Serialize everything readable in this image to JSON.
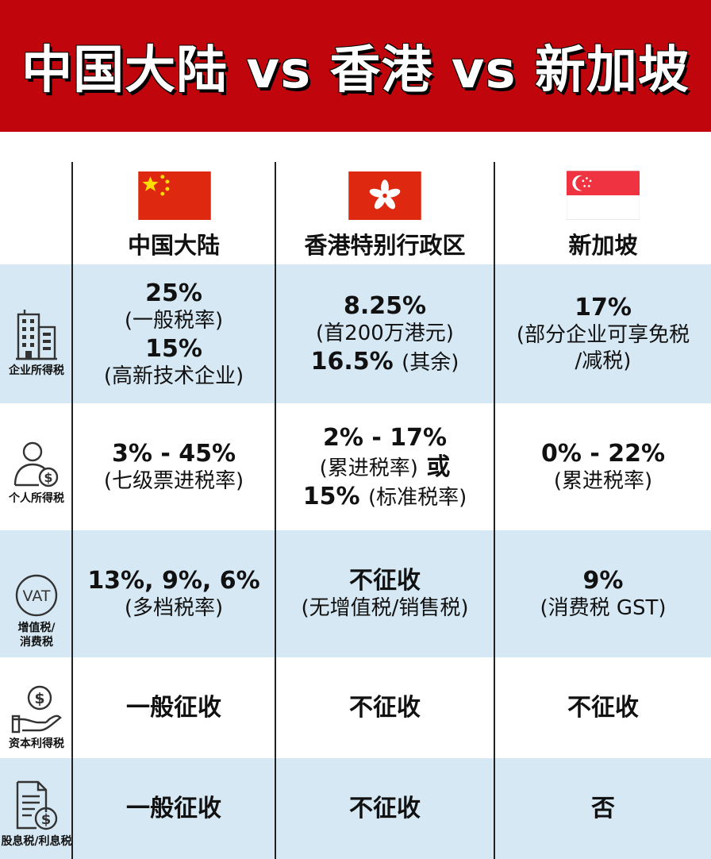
{
  "title": "中国大陆 vs 香港 vs 新加坡",
  "colors": {
    "banner": "#c0060c",
    "band": "#d6e8f3",
    "cn_red": "#de2910",
    "cn_star": "#ffde00",
    "sg_red": "#ef3340"
  },
  "columns": [
    {
      "name": "中国大陆",
      "flag": "china-flag-icon"
    },
    {
      "name": "香港特别行政区",
      "flag": "hong-kong-flag-icon"
    },
    {
      "name": "新加坡",
      "flag": "singapore-flag-icon"
    }
  ],
  "rows": [
    {
      "label": "企业所得税",
      "icon": "office-building-icon",
      "cells": [
        [
          "25%",
          "(一般税率)",
          "15%",
          "(高新技术企业)"
        ],
        [
          "8.25%",
          "(首200万港元)",
          "16.5%",
          "(其余)"
        ],
        [
          "17%",
          "(部分企业可享免税",
          "/减税)"
        ]
      ]
    },
    {
      "label": "个人所得税",
      "icon": "person-coin-icon",
      "cells": [
        [
          "3% - 45%",
          "(七级票进税率)"
        ],
        [
          "2% - 17%",
          "(累进税率)",
          "或",
          "15%",
          "(标准税率)"
        ],
        [
          "0% - 22%",
          "(累进税率)"
        ]
      ]
    },
    {
      "label": "增值税/消费税",
      "label_line1": "增值税/",
      "label_line2": "消费税",
      "icon": "vat-circle-icon",
      "icon_text": "VAT",
      "cells": [
        [
          "13%, 9%, 6%",
          "(多档税率)"
        ],
        [
          "不征收",
          "(无增值税/销售税)"
        ],
        [
          "9%",
          "(消费税 GST)"
        ]
      ]
    },
    {
      "label": "资本利得税",
      "icon": "hand-coin-icon",
      "cells": [
        [
          "一般征收"
        ],
        [
          "不征收"
        ],
        [
          "不征收"
        ]
      ]
    },
    {
      "label": "股息税/利息税",
      "icon": "document-coin-icon",
      "cells": [
        [
          "一般征收"
        ],
        [
          "不征收"
        ],
        [
          "否"
        ]
      ]
    }
  ]
}
